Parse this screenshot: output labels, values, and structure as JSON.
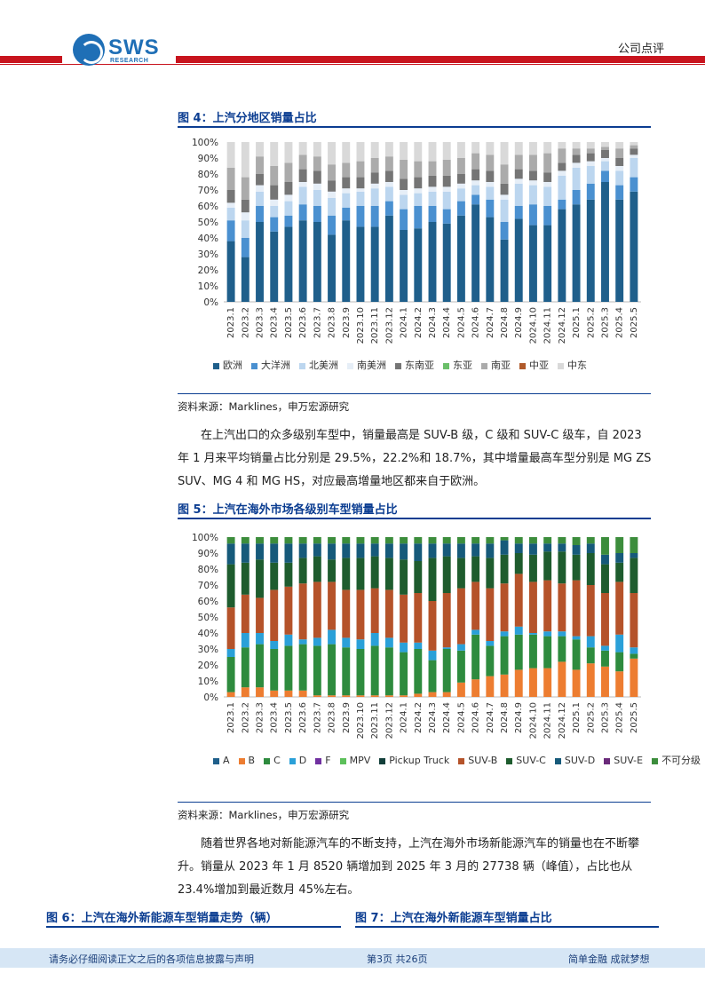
{
  "header": {
    "logo_text": "SWS",
    "logo_sub": "RESEARCH",
    "doc_type": "公司点评"
  },
  "fig4": {
    "title": "图 4：上汽分地区销量占比",
    "source": "资料来源：Marklines，申万宏源研究",
    "chart_data": {
      "type": "bar",
      "stacked": true,
      "categories": [
        "2023.1",
        "2023.2",
        "2023.3",
        "2023.4",
        "2023.5",
        "2023.6",
        "2023.7",
        "2023.8",
        "2023.9",
        "2023.10",
        "2023.11",
        "2023.12",
        "2024.1",
        "2024.2",
        "2024.3",
        "2024.4",
        "2024.5",
        "2024.6",
        "2024.7",
        "2024.8",
        "2024.9",
        "2024.10",
        "2024.11",
        "2024.12",
        "2025.1",
        "2025.2",
        "2025.3",
        "2025.4",
        "2025.5"
      ],
      "yticks": [
        "0%",
        "10%",
        "20%",
        "30%",
        "40%",
        "50%",
        "60%",
        "70%",
        "80%",
        "90%",
        "100%"
      ],
      "ylim": [
        0,
        100
      ],
      "series": [
        {
          "name": "欧洲",
          "color": "#1f5f8b",
          "values": [
            38,
            28,
            50,
            44,
            47,
            51,
            50,
            42,
            51,
            47,
            47,
            54,
            45,
            46,
            50,
            49,
            54,
            61,
            53,
            39,
            52,
            48,
            48,
            58,
            61,
            64,
            75,
            64,
            69
          ]
        },
        {
          "name": "大洋洲",
          "color": "#4a90d0",
          "values": [
            13,
            12,
            10,
            9,
            7,
            10,
            10,
            12,
            8,
            13,
            13,
            9,
            13,
            14,
            10,
            9,
            9,
            6,
            11,
            11,
            8,
            13,
            12,
            6,
            9,
            10,
            7,
            9,
            9
          ]
        },
        {
          "name": "北美洲",
          "color": "#bcd6ef",
          "values": [
            8,
            11,
            9,
            7,
            9,
            11,
            10,
            11,
            9,
            9,
            11,
            9,
            9,
            8,
            9,
            11,
            8,
            6,
            8,
            14,
            14,
            12,
            12,
            15,
            14,
            11,
            6,
            9,
            12
          ]
        },
        {
          "name": "南美洲",
          "color": "#e6eef7",
          "values": [
            3,
            5,
            4,
            4,
            4,
            3,
            4,
            4,
            3,
            2,
            3,
            3,
            3,
            3,
            3,
            3,
            3,
            3,
            3,
            3,
            3,
            3,
            3,
            3,
            3,
            3,
            2,
            3,
            2
          ]
        },
        {
          "name": "东南亚",
          "color": "#757575",
          "values": [
            8,
            8,
            7,
            9,
            8,
            8,
            8,
            7,
            7,
            7,
            7,
            7,
            7,
            7,
            7,
            7,
            6,
            7,
            7,
            7,
            6,
            6,
            6,
            5,
            5,
            5,
            5,
            5,
            4
          ]
        },
        {
          "name": "东亚",
          "color": "#6abf69",
          "values": [
            0,
            0,
            0,
            0,
            0,
            0,
            0,
            0,
            0,
            0,
            0,
            0,
            0,
            0,
            0,
            0,
            0,
            0,
            0,
            0,
            0,
            0,
            0,
            0,
            0,
            0,
            0,
            0,
            0
          ]
        },
        {
          "name": "南亚",
          "color": "#ababab",
          "values": [
            14,
            14,
            11,
            12,
            12,
            9,
            9,
            10,
            9,
            10,
            9,
            9,
            12,
            10,
            9,
            10,
            10,
            10,
            10,
            12,
            9,
            10,
            12,
            9,
            4,
            3,
            2,
            6,
            2
          ]
        },
        {
          "name": "中亚",
          "color": "#b05a2a",
          "values": [
            0,
            0,
            0,
            0,
            0,
            0,
            0,
            0,
            0,
            0,
            0,
            0,
            0,
            0,
            0,
            0,
            0,
            0,
            0,
            0,
            0,
            0,
            0,
            0,
            0,
            0,
            0,
            0,
            0
          ]
        },
        {
          "name": "中东",
          "color": "#d9d9d9",
          "values": [
            16,
            22,
            9,
            15,
            13,
            8,
            9,
            14,
            13,
            12,
            10,
            9,
            11,
            12,
            12,
            11,
            10,
            7,
            8,
            14,
            8,
            8,
            7,
            4,
            4,
            4,
            3,
            4,
            2
          ]
        }
      ]
    }
  },
  "paragraph1": "在上汽出口的众多级别车型中，销量最高是 SUV-B 级，C 级和 SUV-C 级车，自 2023 年 1 月来平均销量占比分别是 29.5%，22.2%和 18.7%，其中增量最高车型分别是 MG ZS SUV、MG 4 和 MG HS，对应最高增量地区都来自于欧洲。",
  "fig5": {
    "title": "图 5：上汽在海外市场各级别车型销量占比",
    "source": "资料来源：Marklines，申万宏源研究",
    "chart_data": {
      "type": "bar",
      "stacked": true,
      "categories": [
        "2023.1",
        "2023.2",
        "2023.3",
        "2023.4",
        "2023.5",
        "2023.6",
        "2023.7",
        "2023.8",
        "2023.9",
        "2023.10",
        "2023.11",
        "2023.12",
        "2024.1",
        "2024.2",
        "2024.3",
        "2024.4",
        "2024.5",
        "2024.6",
        "2024.7",
        "2024.8",
        "2024.9",
        "2024.10",
        "2024.11",
        "2024.12",
        "2025.1",
        "2025.2",
        "2025.3",
        "2025.4",
        "2025.5"
      ],
      "yticks": [
        "0%",
        "10%",
        "20%",
        "30%",
        "40%",
        "50%",
        "60%",
        "70%",
        "80%",
        "90%",
        "100%"
      ],
      "ylim": [
        0,
        100
      ],
      "series": [
        {
          "name": "A",
          "color": "#1f5f8b",
          "values": [
            0,
            0,
            0,
            0,
            0,
            0,
            0,
            0,
            0,
            0,
            0,
            0,
            0,
            0,
            0,
            0,
            0,
            0,
            0,
            0,
            0,
            0,
            0,
            0,
            0,
            0,
            0,
            0,
            0
          ]
        },
        {
          "name": "B",
          "color": "#ed7d31",
          "values": [
            3,
            6,
            6,
            4,
            4,
            4,
            1,
            1,
            1,
            1,
            1,
            1,
            1,
            2,
            3,
            3,
            9,
            11,
            13,
            14,
            17,
            18,
            18,
            22,
            17,
            21,
            19,
            16,
            24
          ]
        },
        {
          "name": "C",
          "color": "#2e8b3e",
          "values": [
            22,
            25,
            27,
            26,
            28,
            29,
            31,
            32,
            30,
            29,
            31,
            30,
            27,
            28,
            20,
            27,
            20,
            28,
            19,
            24,
            22,
            21,
            20,
            16,
            19,
            10,
            10,
            12,
            3
          ]
        },
        {
          "name": "D",
          "color": "#2aa0d8",
          "values": [
            5,
            9,
            7,
            5,
            7,
            3,
            5,
            9,
            6,
            6,
            8,
            6,
            6,
            4,
            6,
            1,
            4,
            3,
            3,
            3,
            5,
            1,
            3,
            3,
            2,
            7,
            3,
            11,
            4
          ]
        },
        {
          "name": "F",
          "color": "#7030a0",
          "values": [
            0,
            0,
            0,
            0,
            0,
            0,
            0,
            0,
            0,
            0,
            0,
            0,
            0,
            0,
            0,
            0,
            0,
            0,
            0,
            0,
            0,
            0,
            0,
            0,
            0,
            0,
            0,
            0,
            0
          ]
        },
        {
          "name": "MPV",
          "color": "#5cc05a",
          "values": [
            0,
            0,
            0,
            0,
            0,
            0,
            0,
            0,
            0,
            0,
            0,
            0,
            0,
            0,
            0,
            0,
            0,
            0,
            0,
            0,
            0,
            0,
            0,
            0,
            0,
            0,
            0,
            0,
            0
          ]
        },
        {
          "name": "Pickup Truck",
          "color": "#123f3a",
          "values": [
            0,
            0,
            0,
            0,
            0,
            0,
            0,
            0,
            0,
            0,
            0,
            0,
            0,
            0,
            0,
            0,
            0,
            0,
            0,
            0,
            0,
            0,
            0,
            0,
            0,
            0,
            0,
            0,
            0
          ]
        },
        {
          "name": "SUV-B",
          "color": "#b5532a",
          "values": [
            26,
            24,
            22,
            32,
            30,
            35,
            35,
            30,
            30,
            31,
            28,
            30,
            30,
            31,
            31,
            34,
            35,
            30,
            33,
            30,
            33,
            32,
            32,
            30,
            35,
            32,
            33,
            33,
            34
          ]
        },
        {
          "name": "SUV-C",
          "color": "#1e5c2e",
          "values": [
            27,
            20,
            24,
            17,
            15,
            16,
            16,
            14,
            20,
            20,
            20,
            20,
            22,
            20,
            27,
            23,
            19,
            16,
            19,
            18,
            13,
            17,
            18,
            20,
            16,
            20,
            18,
            12,
            22
          ]
        },
        {
          "name": "SUV-D",
          "color": "#165a7a",
          "values": [
            13,
            12,
            10,
            12,
            12,
            9,
            8,
            10,
            9,
            9,
            8,
            9,
            10,
            11,
            9,
            8,
            9,
            8,
            9,
            9,
            6,
            7,
            5,
            5,
            6,
            6,
            6,
            6,
            3
          ]
        },
        {
          "name": "SUV-E",
          "color": "#6a2a7a",
          "values": [
            0,
            0,
            0,
            0,
            0,
            0,
            0,
            0,
            0,
            0,
            0,
            0,
            0,
            0,
            0,
            0,
            0,
            0,
            0,
            0,
            0,
            0,
            0,
            0,
            0,
            0,
            0,
            0,
            0
          ]
        },
        {
          "name": "不可分级",
          "color": "#3c8d3c",
          "values": [
            4,
            4,
            4,
            4,
            4,
            4,
            4,
            4,
            4,
            4,
            4,
            4,
            4,
            4,
            4,
            4,
            4,
            4,
            4,
            2,
            4,
            4,
            4,
            4,
            5,
            4,
            11,
            10,
            10
          ]
        }
      ]
    }
  },
  "paragraph2": "随着世界各地对新能源汽车的不断支持，上汽在海外市场新能源汽车的销量也在不断攀升。销量从 2023 年 1 月 8520 辆增加到 2025 年 3 月的 27738 辆（峰值），占比也从23.4%增加到最近数月 45%左右。",
  "fig6": {
    "title": "图 6：上汽在海外新能源车型销量走势（辆）"
  },
  "fig7": {
    "title": "图 7：上汽在海外新能源车型销量占比"
  },
  "footer": {
    "left": "请务必仔细阅读正文之后的各项信息披露与声明",
    "center": "第3页 共26页",
    "right": "简单金融  成就梦想"
  }
}
